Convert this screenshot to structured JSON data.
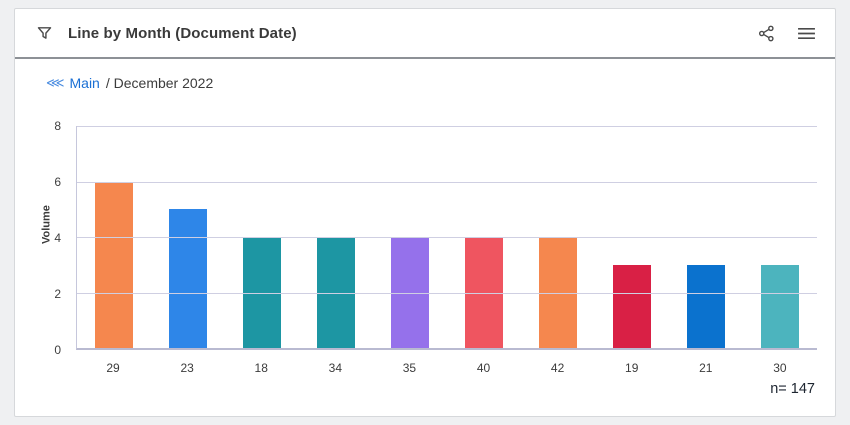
{
  "header": {
    "title": "Line by Month (Document Date)"
  },
  "icons": {
    "filter": "funnel-icon",
    "share": "share-icon",
    "menu": "hamburger-menu-icon",
    "breadcrumb_back_glyph": "⋘"
  },
  "breadcrumb": {
    "link": "Main",
    "separator": "/",
    "current": "December 2022",
    "rest": "/ December 2022"
  },
  "chart_data": {
    "type": "bar",
    "categories": [
      "29",
      "23",
      "18",
      "34",
      "35",
      "40",
      "42",
      "19",
      "21",
      "30"
    ],
    "values": [
      6,
      5,
      4,
      4,
      4,
      4,
      4,
      3,
      3,
      3
    ],
    "bar_colors": [
      "#f5874e",
      "#2e86e8",
      "#1d96a3",
      "#1d96a3",
      "#9571eb",
      "#ef5560",
      "#f5874e",
      "#d92045",
      "#0b72ce",
      "#4cb4be"
    ],
    "title": "Line by Month (Document Date)",
    "xlabel": "",
    "ylabel": "Volume",
    "ylim": [
      0,
      8
    ],
    "yticks": [
      0,
      2,
      4,
      6,
      8
    ],
    "grid": "horizontal-only",
    "legend": "none",
    "gridline_color": "#cfcfe2"
  },
  "footer": {
    "sample_size": "n= 147"
  },
  "colors": {
    "page_bg": "#eff0f2",
    "card_bg": "#ffffff",
    "link_blue": "#1a6fd4",
    "icon_gray": "#4a4a4a",
    "header_divider": "#8d9196"
  }
}
